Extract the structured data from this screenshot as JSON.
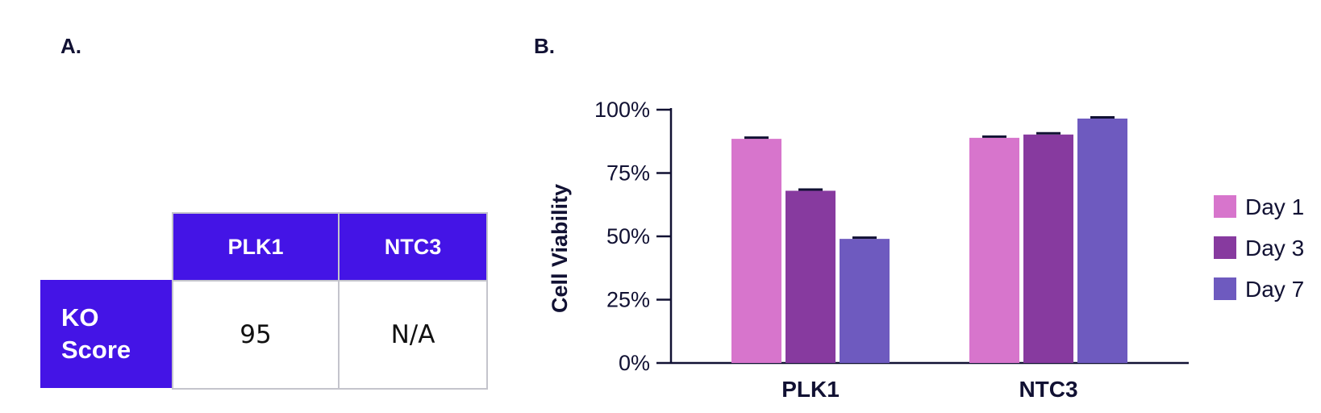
{
  "panels": {
    "a": "A.",
    "b": "B."
  },
  "ko_table": {
    "columns": [
      "PLK1",
      "NTC3"
    ],
    "row_label": "KO\nScore",
    "values": [
      "95",
      "N/A"
    ],
    "header_color": "#4414e6",
    "border_color": "#c4c4cc"
  },
  "chart_data": {
    "type": "bar",
    "categories": [
      "PLK1",
      "NTC3"
    ],
    "series": [
      {
        "name": "Day 1",
        "color": "#d775cc",
        "values": [
          88.5,
          88.9
        ]
      },
      {
        "name": "Day 3",
        "color": "#873a9f",
        "values": [
          68.0,
          90.2
        ]
      },
      {
        "name": "Day 7",
        "color": "#6e5abf",
        "values": [
          49.0,
          96.5
        ]
      }
    ],
    "ylabel": "Cell Viability",
    "ylim": [
      0,
      100
    ],
    "yticks": [
      0,
      25,
      50,
      75,
      100
    ],
    "ytick_labels": [
      "0%",
      "25%",
      "50%",
      "75%",
      "100%"
    ],
    "error_bars": true,
    "legend": "right",
    "grid": false
  }
}
